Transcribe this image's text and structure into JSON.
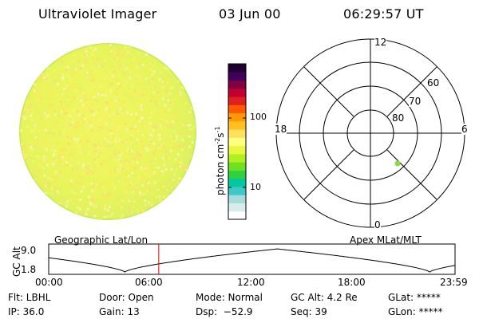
{
  "header": {
    "instrument": "Ultraviolet Imager",
    "date": "03 Jun 00",
    "time": "06:29:57 UT"
  },
  "colorbar": {
    "label": "photon cm",
    "label_exp1": "-2",
    "label_s": "s",
    "label_exp2": "-1",
    "tick_100": "100",
    "tick_10": "10",
    "colors": [
      "#ffffff",
      "#d8ecec",
      "#a8dcdc",
      "#40c8c8",
      "#00c8a0",
      "#30d040",
      "#70e020",
      "#b0f020",
      "#e8f840",
      "#ffff80",
      "#ffe060",
      "#ffc020",
      "#ff9a00",
      "#ff5a00",
      "#e02020",
      "#c00030",
      "#800040",
      "#400060",
      "#200030"
    ]
  },
  "polar": {
    "mlt_12": "12",
    "mlt_18": "18",
    "mlt_6": "6",
    "mlt_0": "0",
    "lat_60": "60",
    "lat_70": "70",
    "lat_80": "80"
  },
  "timeline": {
    "left_title": "Geographic Lat/Lon",
    "right_title": "Apex MLat/MLT",
    "axis_label": "GC Alt",
    "y_top": "9.0",
    "y_bottom": "1.8",
    "ticks": [
      "00:00",
      "06:00",
      "12:00",
      "18:00",
      "23:59"
    ],
    "marker_time_hours": 6.5
  },
  "status": {
    "flt": "Flt: LBHL",
    "ip": "IP: 36.0",
    "door": "Door: Open",
    "gain": "Gain: 13",
    "mode": "Mode: Normal",
    "dsp": "Dsp:  −52.9",
    "gc_alt": "GC Alt: 4.2 Re",
    "seq": "Seq: 39",
    "glat": "GLat: *****",
    "glon": "GLon: *****"
  }
}
